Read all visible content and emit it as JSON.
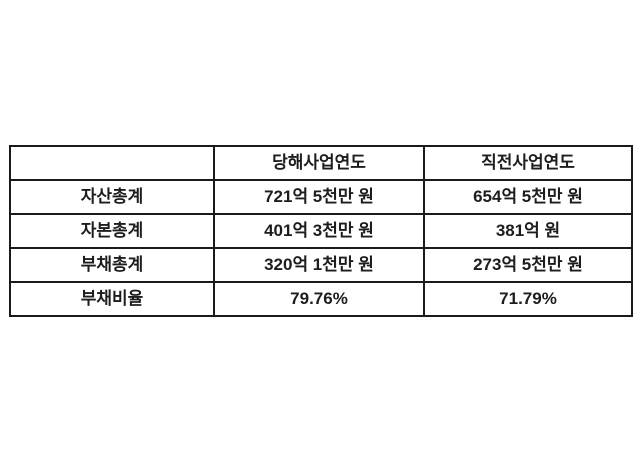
{
  "page": {
    "background_color": "#ffffff",
    "border_color": "#1a1a1a",
    "text_color": "#1d1d1d"
  },
  "table": {
    "header": {
      "col0": "",
      "col1": "당해사업연도",
      "col2": "직전사업연도"
    },
    "rows": [
      {
        "label": "자산총계",
        "current": "721억 5천만 원",
        "previous": "654억 5천만 원"
      },
      {
        "label": "자본총계",
        "current": "401억 3천만 원",
        "previous": "381억 원"
      },
      {
        "label": "부채총계",
        "current": "320억 1천만 원",
        "previous": "273억 5천만 원"
      },
      {
        "label": "부채비율",
        "current": "79.76%",
        "previous": "71.79%"
      }
    ]
  },
  "chart_data": {
    "type": "table",
    "columns": [
      "",
      "당해사업연도",
      "직전사업연도"
    ],
    "rows": [
      [
        "자산총계",
        "721억 5천만 원",
        "654억 5천만 원"
      ],
      [
        "자본총계",
        "401억 3천만 원",
        "381억 원"
      ],
      [
        "부채총계",
        "320억 1천만 원",
        "273억 5천만 원"
      ],
      [
        "부채비율",
        "79.76%",
        "71.79%"
      ]
    ],
    "numeric_values_in_eok_won": {
      "자산총계": [
        721.5,
        654.5
      ],
      "자본총계": [
        401.3,
        381
      ],
      "부채총계": [
        320.1,
        273.5
      ],
      "부채비율_percent": [
        79.76,
        71.79
      ]
    },
    "title": "",
    "grid": "on",
    "legend_position": "none"
  }
}
